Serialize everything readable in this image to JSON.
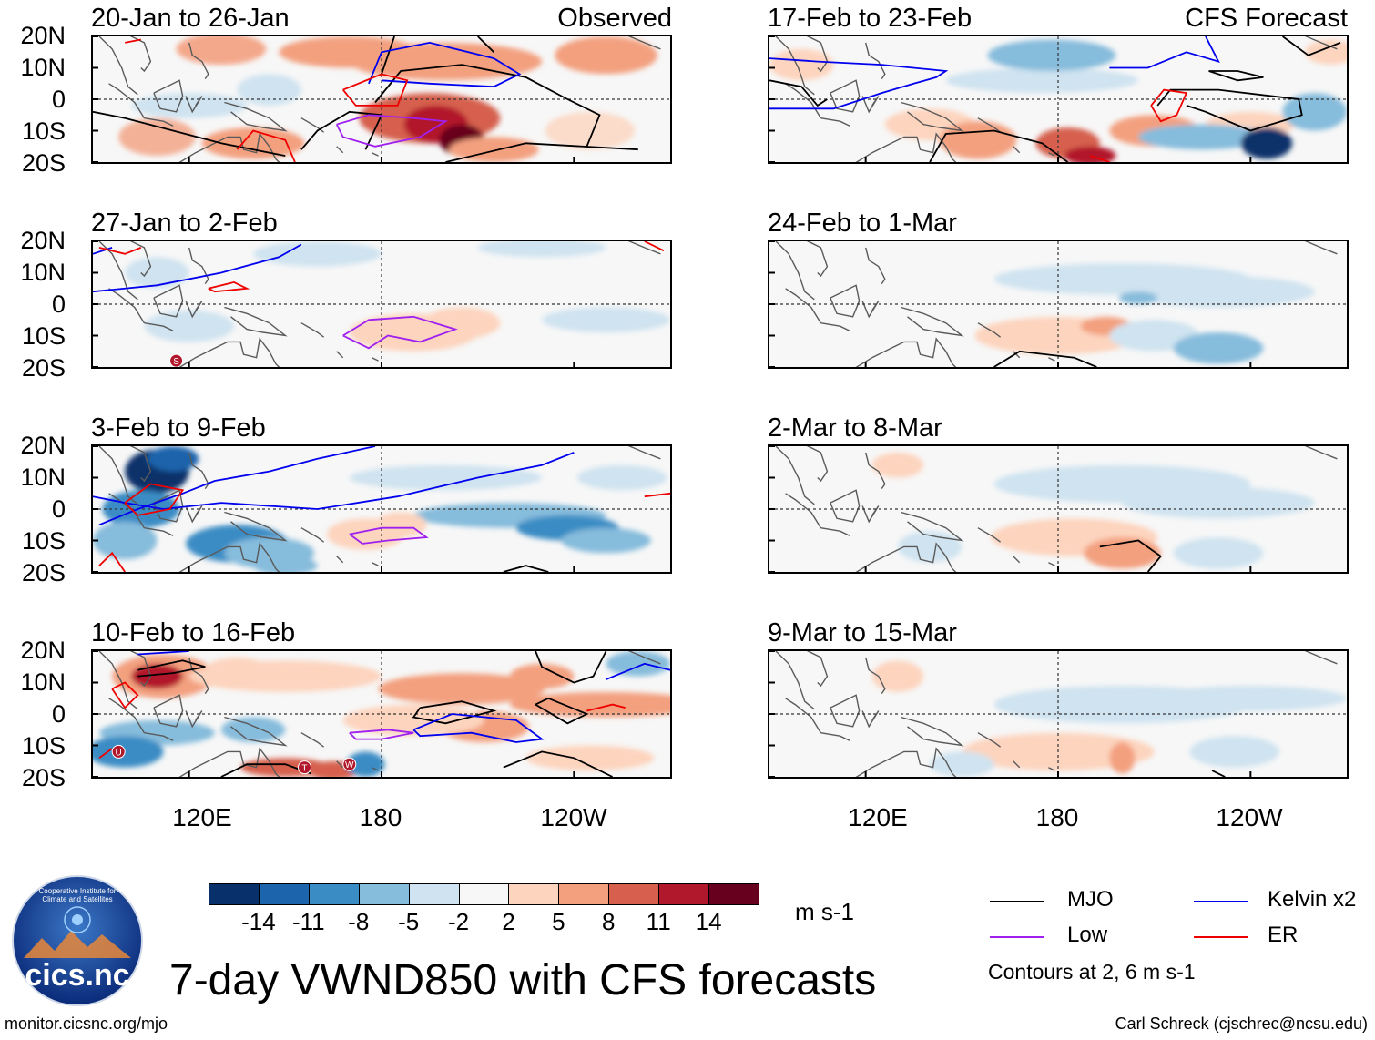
{
  "figure_title": "7-day VWND850 with CFS forecasts",
  "footer_left": "monitor.cicsnc.org/mjo",
  "footer_right": "Carl Schreck (cjschrec@ncsu.edu)",
  "logo": {
    "text": "cics.nc",
    "ring_text": "Cooperative Institute for Climate and Satellites"
  },
  "colors": {
    "mjo": "#000000",
    "kelvin": "#0000ee",
    "low": "#a020f0",
    "er": "#ee0000",
    "scale": [
      "#08306b",
      "#1c64ac",
      "#3a8cc4",
      "#86bcdc",
      "#cfe3f0",
      "#f7f7f7",
      "#fdd4be",
      "#f3a07f",
      "#d6604d",
      "#b2182b",
      "#67001f"
    ]
  },
  "chart_data": {
    "type": "heatmap",
    "variable": "VWND850",
    "units": "m s-1",
    "xlabels": [
      "120E",
      "180",
      "120W"
    ],
    "ylabels": [
      "20N",
      "10N",
      "0",
      "10S",
      "20S"
    ],
    "colorbar_levels": [
      "-14",
      "-11",
      "-8",
      "-5",
      "-2",
      "2",
      "5",
      "8",
      "11",
      "14"
    ],
    "left_header": "Observed",
    "right_header": "CFS Forecast",
    "panels": [
      {
        "title": "20-Jan to 26-Jan",
        "column": "observed",
        "row": 0
      },
      {
        "title": "27-Jan to 2-Feb",
        "column": "observed",
        "row": 1
      },
      {
        "title": "3-Feb to 9-Feb",
        "column": "observed",
        "row": 2
      },
      {
        "title": "10-Feb to 16-Feb",
        "column": "observed",
        "row": 3
      },
      {
        "title": "17-Feb to 23-Feb",
        "column": "forecast",
        "row": 0
      },
      {
        "title": "24-Feb to 1-Mar",
        "column": "forecast",
        "row": 1
      },
      {
        "title": "2-Mar to 8-Mar",
        "column": "forecast",
        "row": 2
      },
      {
        "title": "9-Mar to 15-Mar",
        "column": "forecast",
        "row": 3
      }
    ],
    "storm_labels": [
      "S",
      "U",
      "T",
      "W"
    ]
  },
  "legend": {
    "items": [
      {
        "label": "MJO",
        "color": "#000000"
      },
      {
        "label": "Kelvin x2",
        "color": "#0000ee"
      },
      {
        "label": "Low",
        "color": "#a020f0"
      },
      {
        "label": "ER",
        "color": "#ee0000"
      }
    ],
    "note": "Contours at 2, 6 m s-1"
  }
}
